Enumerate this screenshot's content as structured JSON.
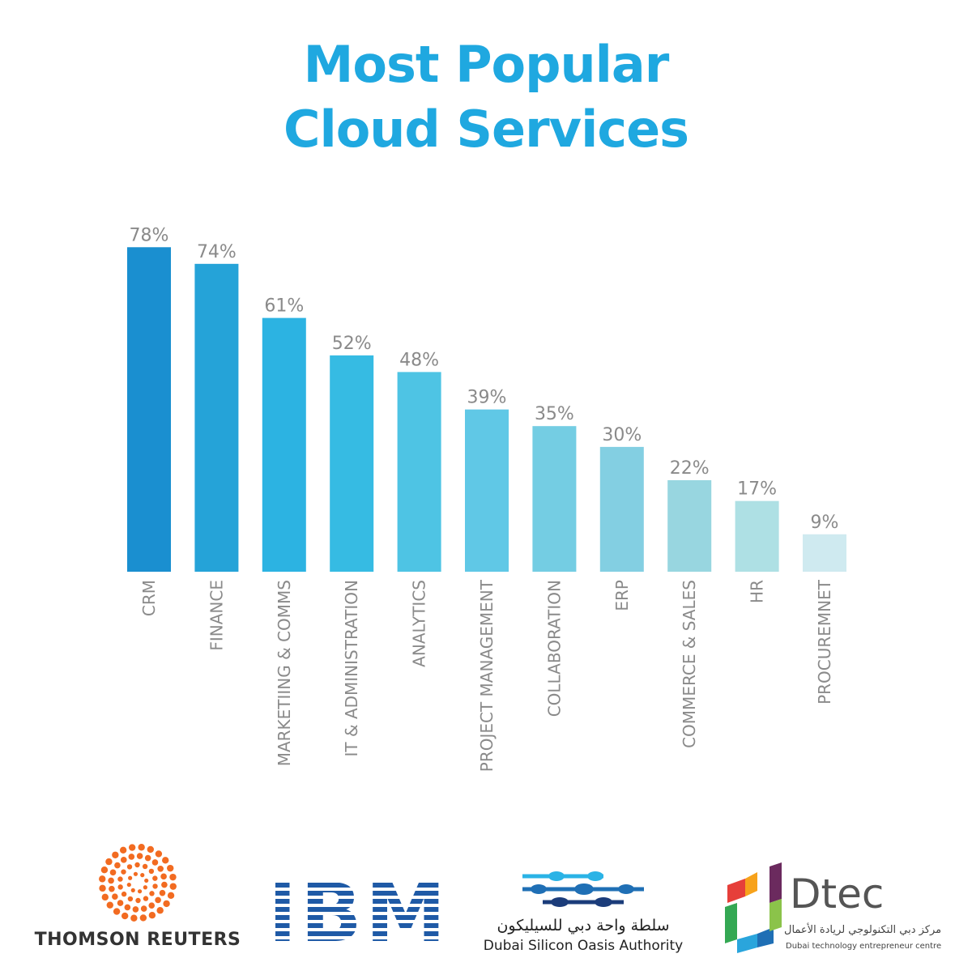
{
  "title_line1": "Most Popular",
  "title_line2": "Cloud Services",
  "chart_data": {
    "type": "bar",
    "categories": [
      "CRM",
      "FINANCE",
      "MARKETIING & COMMS",
      "IT & ADMINISTRATION",
      "ANALYTICS",
      "PROJECT MANAGEMENT",
      "COLLABORATION",
      "ERP",
      "COMMERCE & SALES",
      "HR",
      "PROCUREMNET"
    ],
    "values": [
      78,
      74,
      61,
      52,
      48,
      39,
      35,
      30,
      22,
      17,
      9
    ],
    "value_labels": [
      "78%",
      "74%",
      "61%",
      "52%",
      "48%",
      "39%",
      "35%",
      "30%",
      "22%",
      "17%",
      "9%"
    ],
    "colors": [
      "#1a8fd0",
      "#25a3d8",
      "#2cb3e2",
      "#36bbe3",
      "#4ec4e4",
      "#60c8e6",
      "#74cde3",
      "#83cfe2",
      "#98d6e0",
      "#aee0e4",
      "#cfeaf0"
    ],
    "ylim": [
      0,
      80
    ],
    "grid": false,
    "title": "Most Popular Cloud Services",
    "xlabel": "",
    "ylabel": ""
  },
  "logos": {
    "thomson_reuters": "THOMSON REUTERS",
    "ibm": "IBM",
    "dsoa_arabic": "سلطة واحة دبي للسيليكون",
    "dsoa_english": "Dubai Silicon Oasis Authority",
    "dtec_name": "Dtec",
    "dtec_arabic": "مركز دبي التكنولوجي لريادة الأعمال",
    "dtec_english": "Dubai technology entrepreneur centre"
  },
  "colors": {
    "title": "#1fa8e0",
    "tr_orange": "#f26b21",
    "ibm_blue": "#1f5aa6",
    "dsoa_blue": "#1f6fb5"
  }
}
